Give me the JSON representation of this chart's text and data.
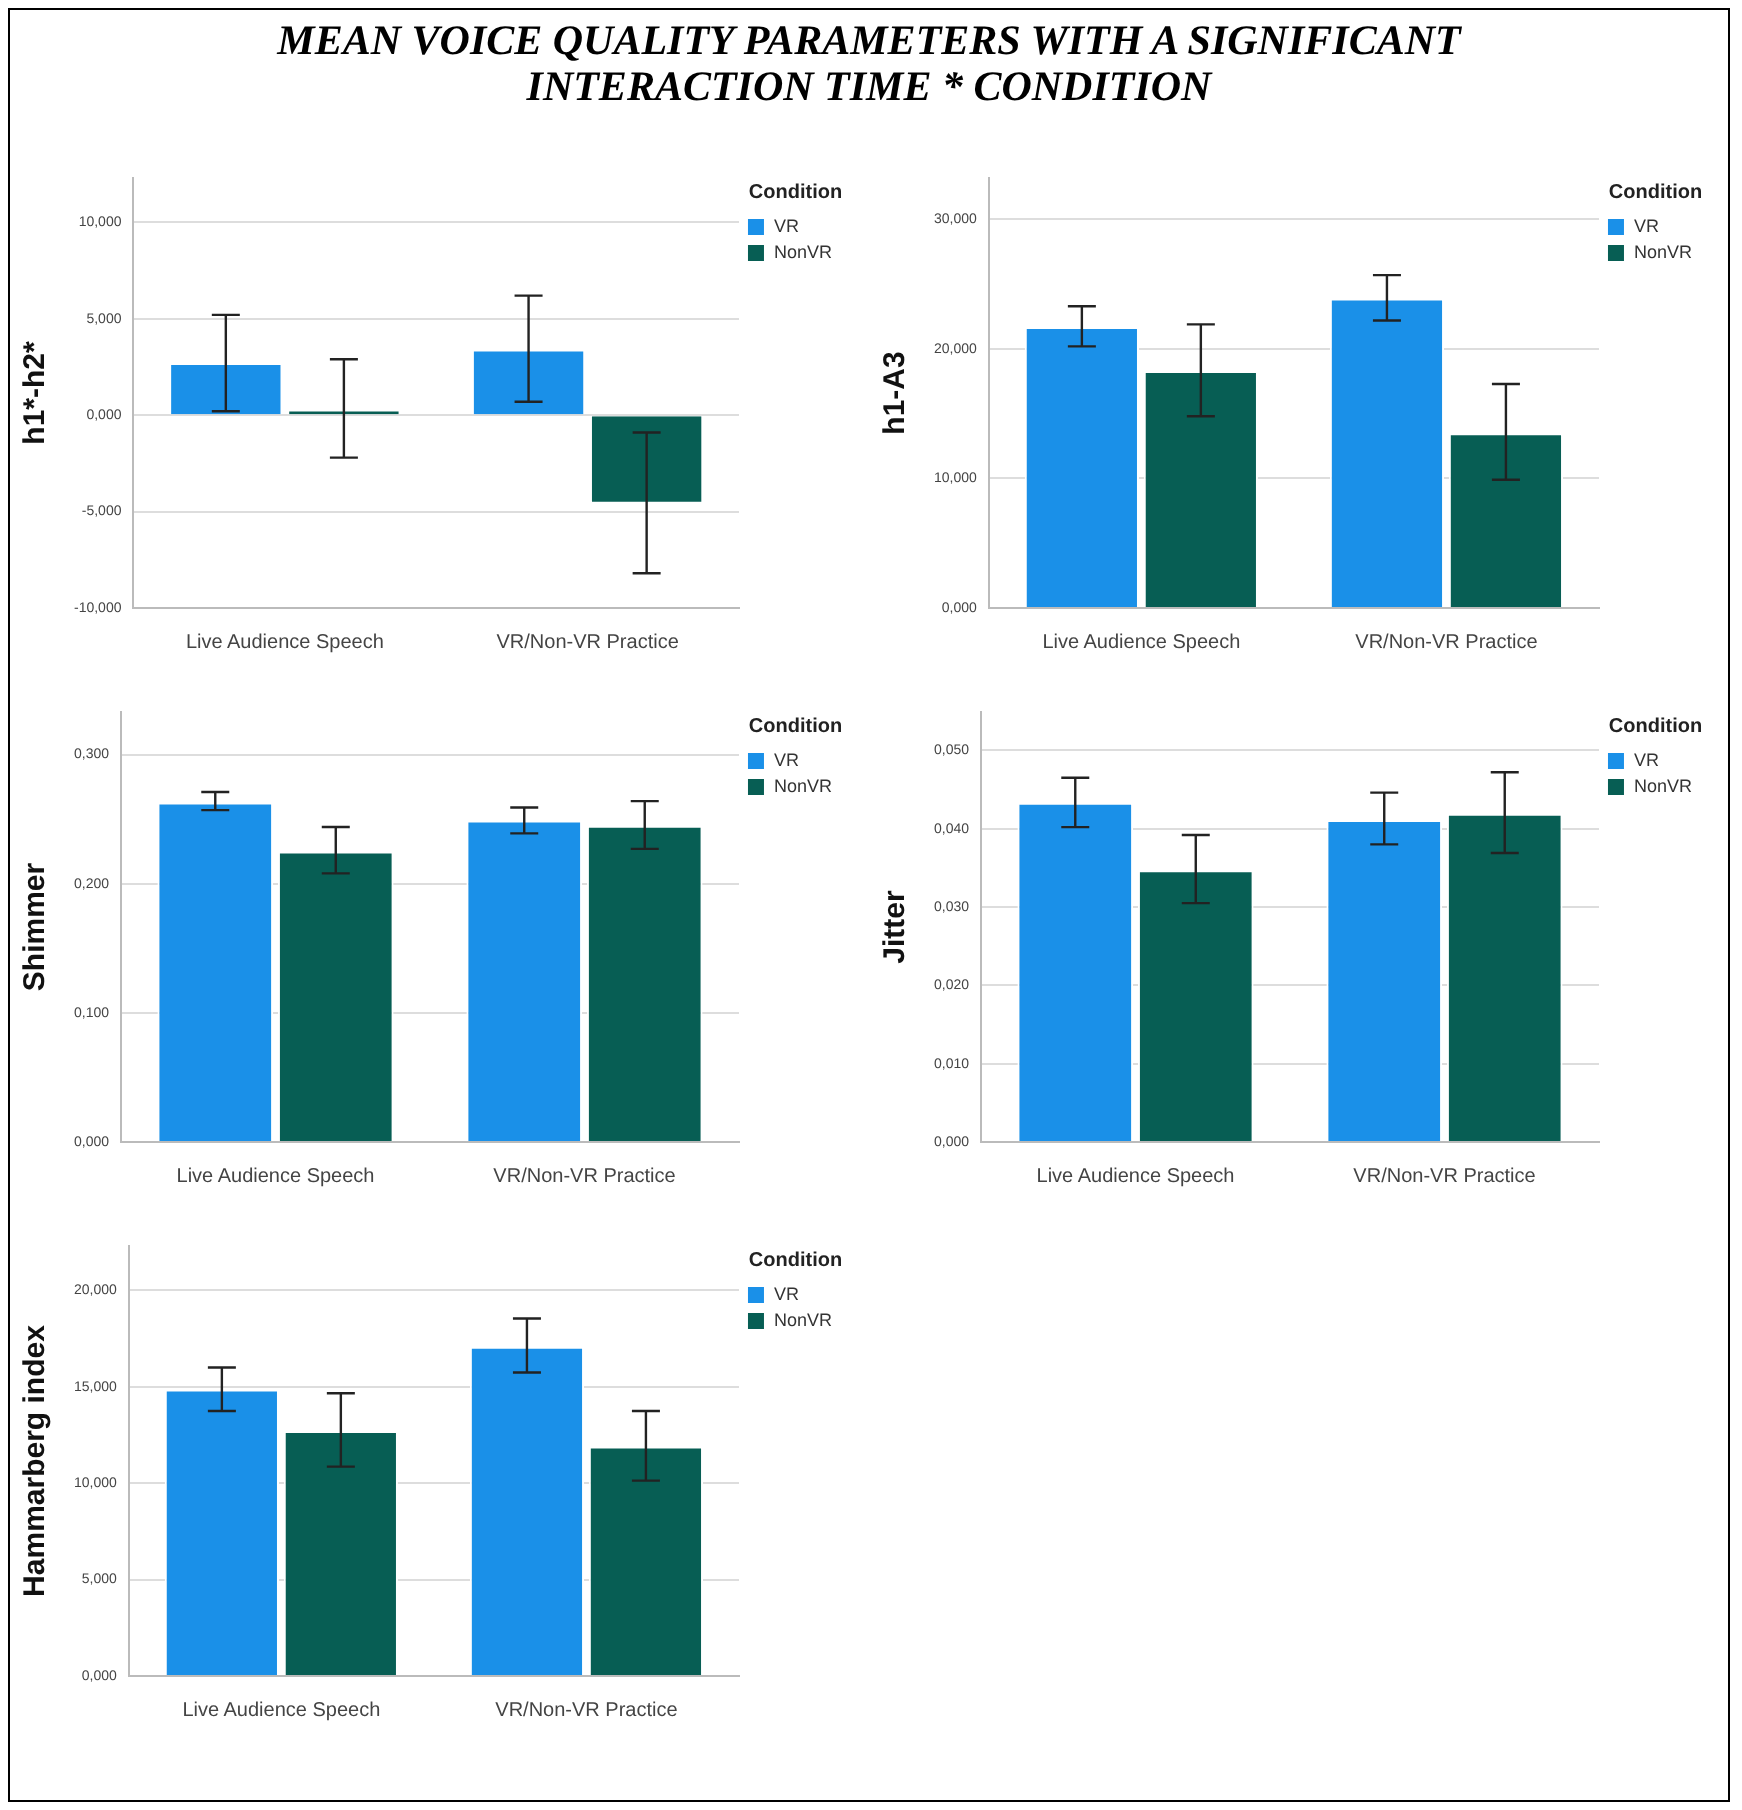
{
  "chart_data": [
    {
      "type": "bar",
      "title": "MEAN VOICE QUALITY PARAMETERS WITH A SIGNIFICANT INTERACTION TIME * CONDITION",
      "ylabel": "h1*-h2*",
      "legend_title": "Condition",
      "legend": "top right",
      "grid": "y",
      "categories": [
        "Live Audience Speech",
        "VR/Non-VR Practice"
      ],
      "ylim": [
        -10,
        12.3
      ],
      "yticks": [
        {
          "value": -10,
          "label": "-10,000"
        },
        {
          "value": -5,
          "label": "-5,000"
        },
        {
          "value": 0,
          "label": "0,000"
        },
        {
          "value": 5,
          "label": "5,000"
        },
        {
          "value": 10,
          "label": "10,000"
        }
      ],
      "series": [
        {
          "name": "VR",
          "color": "#1a90e8",
          "values": [
            2.7,
            3.4
          ],
          "errors": [
            [
              0.2,
              5.2
            ],
            [
              0.7,
              6.2
            ]
          ]
        },
        {
          "name": "NonVR",
          "color": "#075e54",
          "values": [
            0.3,
            -4.6
          ],
          "errors": [
            [
              -2.2,
              2.9
            ],
            [
              -8.2,
              -0.9
            ]
          ]
        }
      ]
    },
    {
      "type": "bar",
      "ylabel": "h1-A3",
      "legend_title": "Condition",
      "legend": "top right",
      "grid": "y",
      "categories": [
        "Live Audience Speech",
        "VR/Non-VR Practice"
      ],
      "ylim": [
        0,
        33.2
      ],
      "yticks": [
        {
          "value": 0,
          "label": "0,000"
        },
        {
          "value": 10,
          "label": "10,000"
        },
        {
          "value": 20,
          "label": "20,000"
        },
        {
          "value": 30,
          "label": "30,000"
        }
      ],
      "series": [
        {
          "name": "VR",
          "color": "#1a90e8",
          "values": [
            21.7,
            23.9
          ],
          "errors": [
            [
              20.2,
              23.3
            ],
            [
              22.2,
              25.7
            ]
          ]
        },
        {
          "name": "NonVR",
          "color": "#075e54",
          "values": [
            18.3,
            13.5
          ],
          "errors": [
            [
              14.8,
              21.9
            ],
            [
              9.9,
              17.3
            ]
          ]
        }
      ]
    },
    {
      "type": "bar",
      "ylabel": "Shimmer",
      "legend_title": "Condition",
      "legend": "top right",
      "grid": "y",
      "categories": [
        "Live Audience Speech",
        "VR/Non-VR Practice"
      ],
      "ylim": [
        0,
        0.333
      ],
      "yticks": [
        {
          "value": 0,
          "label": "0,000"
        },
        {
          "value": 0.1,
          "label": "0,100"
        },
        {
          "value": 0.2,
          "label": "0,200"
        },
        {
          "value": 0.3,
          "label": "0,300"
        }
      ],
      "series": [
        {
          "name": "VR",
          "color": "#1a90e8",
          "values": [
            0.263,
            0.249
          ],
          "errors": [
            [
              0.257,
              0.271
            ],
            [
              0.239,
              0.259
            ]
          ]
        },
        {
          "name": "NonVR",
          "color": "#075e54",
          "values": [
            0.225,
            0.245
          ],
          "errors": [
            [
              0.208,
              0.244
            ],
            [
              0.227,
              0.264
            ]
          ]
        }
      ]
    },
    {
      "type": "bar",
      "ylabel": "Jitter",
      "legend_title": "Condition",
      "legend": "top right",
      "grid": "y",
      "categories": [
        "Live Audience Speech",
        "VR/Non-VR Practice"
      ],
      "ylim": [
        0,
        0.0549
      ],
      "yticks": [
        {
          "value": 0,
          "label": "0,000"
        },
        {
          "value": 0.01,
          "label": "0,010"
        },
        {
          "value": 0.02,
          "label": "0,020"
        },
        {
          "value": 0.03,
          "label": "0,030"
        },
        {
          "value": 0.04,
          "label": "0,040"
        },
        {
          "value": 0.05,
          "label": "0,050"
        }
      ],
      "series": [
        {
          "name": "VR",
          "color": "#1a90e8",
          "values": [
            0.0433,
            0.0411
          ],
          "errors": [
            [
              0.0402,
              0.0465
            ],
            [
              0.038,
              0.0446
            ]
          ]
        },
        {
          "name": "NonVR",
          "color": "#075e54",
          "values": [
            0.0347,
            0.0419
          ],
          "errors": [
            [
              0.0305,
              0.0392
            ],
            [
              0.0369,
              0.0472
            ]
          ]
        }
      ]
    },
    {
      "type": "bar",
      "ylabel": "Hammarberg index",
      "legend_title": "Condition",
      "legend": "top right",
      "grid": "y",
      "categories": [
        "Live Audience Speech",
        "VR/Non-VR Practice"
      ],
      "ylim": [
        0,
        22.3
      ],
      "yticks": [
        {
          "value": 0,
          "label": "0,000"
        },
        {
          "value": 5,
          "label": "5,000"
        },
        {
          "value": 10,
          "label": "10,000"
        },
        {
          "value": 15,
          "label": "15,000"
        },
        {
          "value": 20,
          "label": "20,000"
        }
      ],
      "series": [
        {
          "name": "VR",
          "color": "#1a90e8",
          "values": [
            14.86,
            17.08
          ],
          "errors": [
            [
              13.74,
              16.0
            ],
            [
              15.74,
              18.54
            ]
          ]
        },
        {
          "name": "NonVR",
          "color": "#075e54",
          "values": [
            12.7,
            11.9
          ],
          "errors": [
            [
              10.86,
              14.66
            ],
            [
              10.13,
              13.74
            ]
          ]
        }
      ]
    }
  ]
}
